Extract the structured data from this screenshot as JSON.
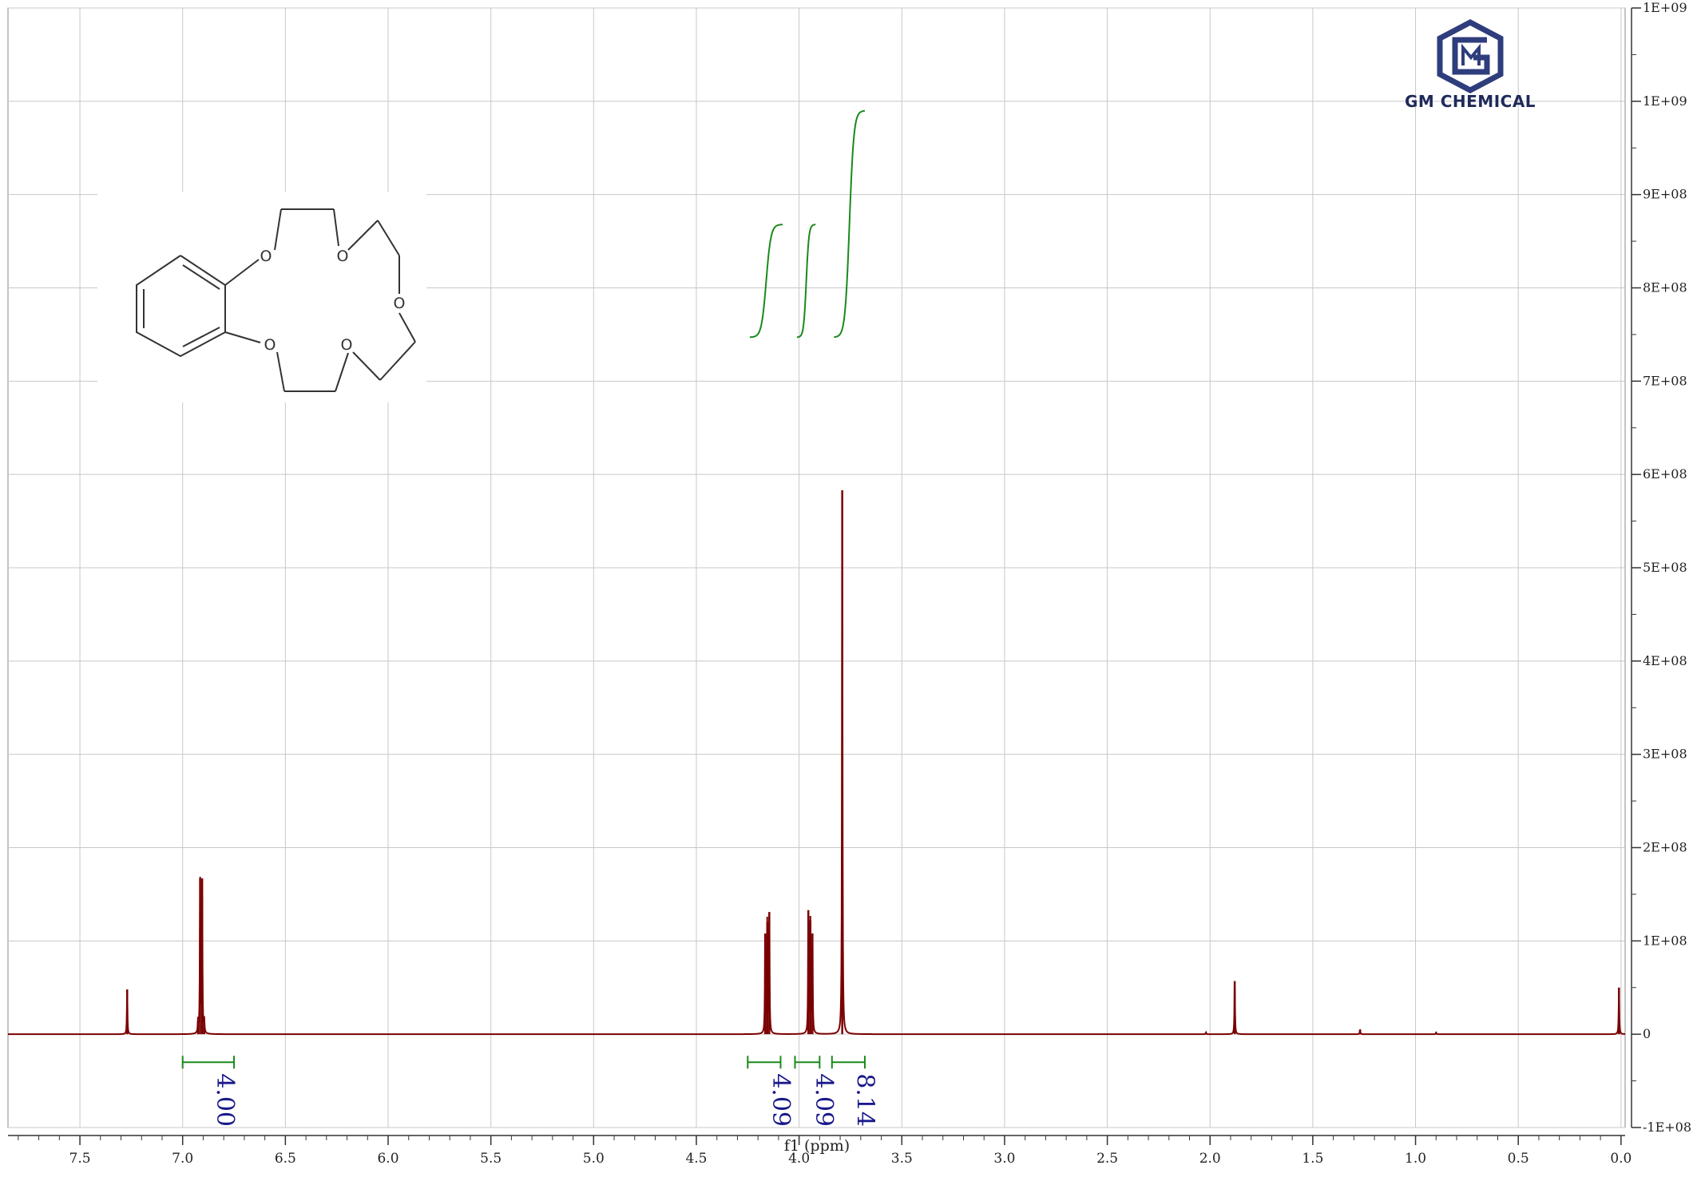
{
  "logo": {
    "text": "GM CHEMICAL",
    "color": "#2e3d7c"
  },
  "colors": {
    "spectrum": "#7a0000",
    "integral": "#1a8a1a",
    "integral_label": "#1a1a8c",
    "grid": "#c8c8c8",
    "axis": "#333333"
  },
  "structure": {
    "atom_label": "O"
  },
  "chart_data": {
    "type": "line",
    "title": "",
    "xlabel": "f1 (ppm)",
    "ylabel": "",
    "xlim": [
      7.85,
      -0.02
    ],
    "ylim": [
      -100000000,
      1100000000
    ],
    "x_ticks": [
      "7.5",
      "7.0",
      "6.5",
      "6.0",
      "5.5",
      "5.0",
      "4.5",
      "4.0",
      "3.5",
      "3.0",
      "2.5",
      "2.0",
      "1.5",
      "1.0",
      "0.5",
      "0.0"
    ],
    "x_tick_values": [
      7.5,
      7.0,
      6.5,
      6.0,
      5.5,
      5.0,
      4.5,
      4.0,
      3.5,
      3.0,
      2.5,
      2.0,
      1.5,
      1.0,
      0.5,
      0.0
    ],
    "y_ticks": [
      "1E+09",
      "1E+09",
      "9E+08",
      "8E+08",
      "7E+08",
      "6E+08",
      "5E+08",
      "4E+08",
      "3E+08",
      "2E+08",
      "1E+08",
      "0",
      "-1E+08"
    ],
    "y_tick_values": [
      1100000000,
      1000000000,
      900000000,
      800000000,
      700000000,
      600000000,
      500000000,
      400000000,
      300000000,
      200000000,
      100000000,
      0,
      -100000000
    ],
    "grid": true,
    "series": [
      {
        "peaks": [
          {
            "ppm": 7.27,
            "height": 48000000
          },
          {
            "ppm": 6.925,
            "height": 14000000
          },
          {
            "ppm": 6.915,
            "height": 167000000
          },
          {
            "ppm": 6.905,
            "height": 167000000
          },
          {
            "ppm": 6.895,
            "height": 14000000
          },
          {
            "ppm": 4.165,
            "height": 108000000
          },
          {
            "ppm": 4.155,
            "height": 120000000
          },
          {
            "ppm": 4.145,
            "height": 131000000
          },
          {
            "ppm": 3.955,
            "height": 133000000
          },
          {
            "ppm": 3.945,
            "height": 122000000
          },
          {
            "ppm": 3.935,
            "height": 108000000
          },
          {
            "ppm": 3.79,
            "height": 583000000
          },
          {
            "ppm": 2.02,
            "height": 2000000
          },
          {
            "ppm": 1.88,
            "height": 57000000
          },
          {
            "ppm": 1.27,
            "height": 5000000
          },
          {
            "ppm": 0.9,
            "height": 2000000
          },
          {
            "ppm": 0.01,
            "height": 50000000
          }
        ]
      }
    ],
    "integrals": [
      {
        "from": 7.0,
        "to": 6.75,
        "value": "4.00"
      },
      {
        "from": 4.25,
        "to": 4.09,
        "value": "4.09"
      },
      {
        "from": 4.02,
        "to": 3.9,
        "value": "4.09"
      },
      {
        "from": 3.84,
        "to": 3.68,
        "value": "8.14"
      }
    ],
    "integral_curves": [
      {
        "from": 4.24,
        "to": 4.08,
        "y_start": 747000000,
        "y_end": 868000000
      },
      {
        "from": 4.01,
        "to": 3.92,
        "y_start": 747000000,
        "y_end": 868000000
      },
      {
        "from": 3.83,
        "to": 3.68,
        "y_start": 747000000,
        "y_end": 990000000
      }
    ]
  }
}
